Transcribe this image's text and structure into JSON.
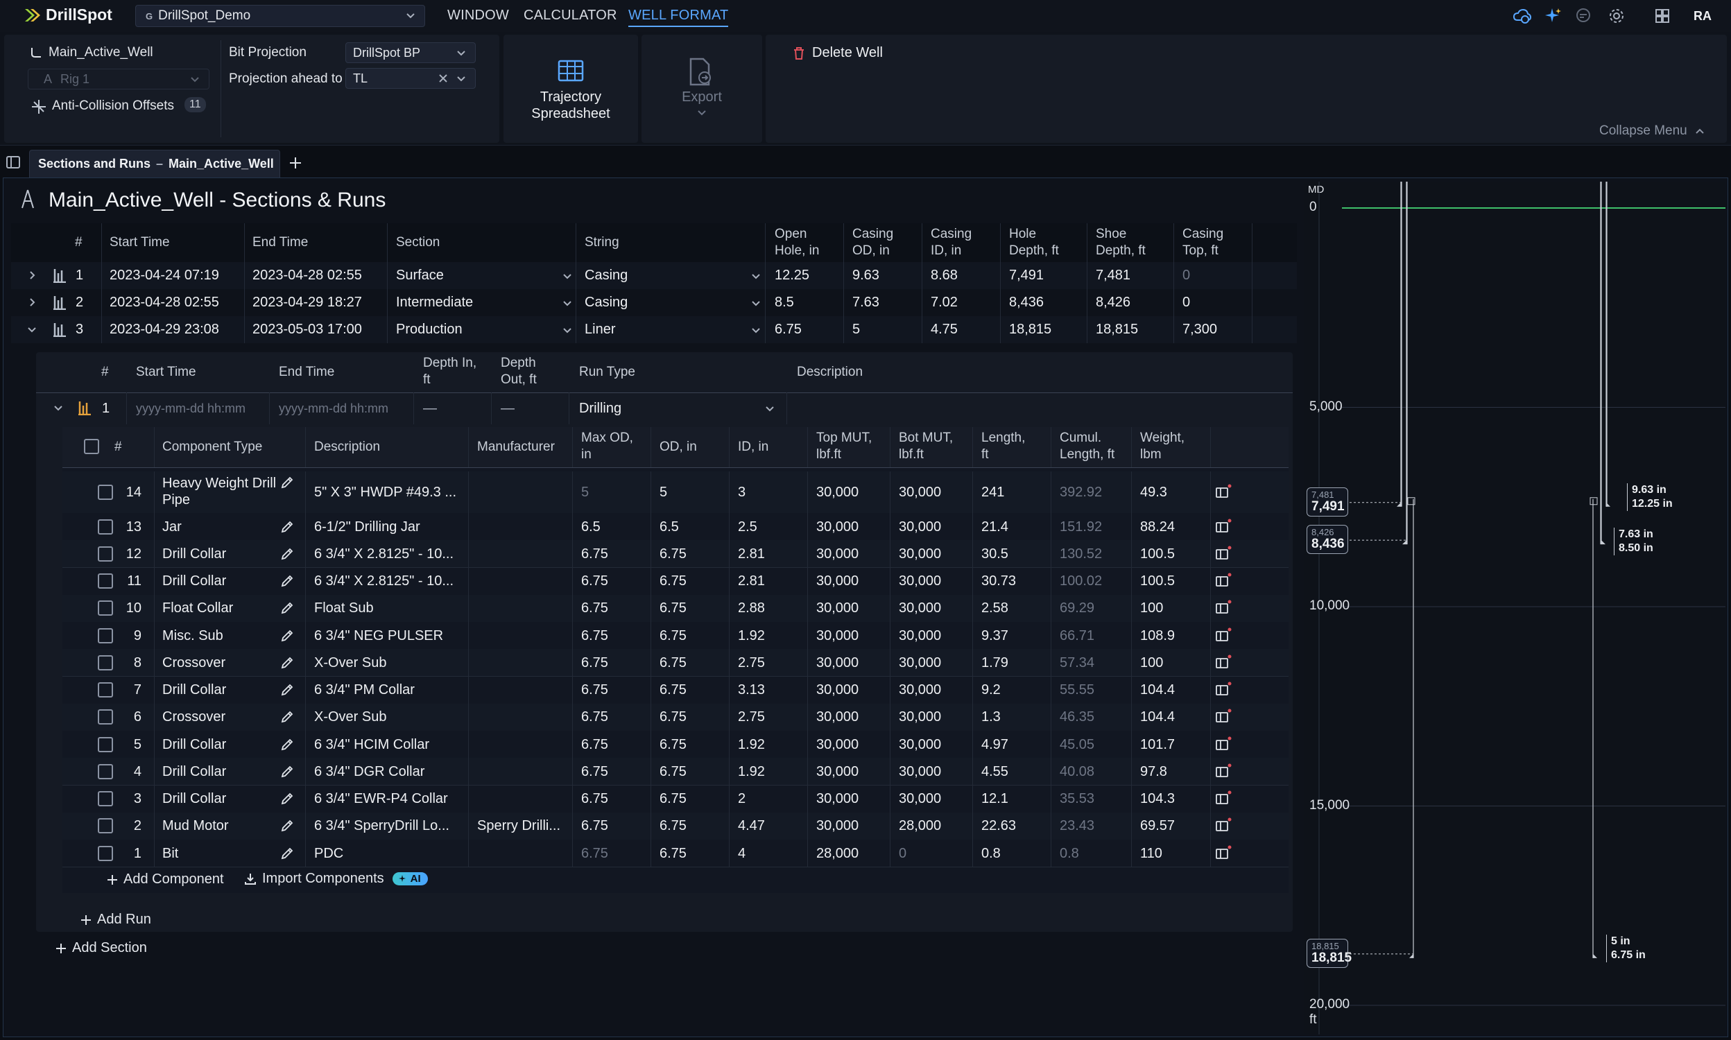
{
  "app": {
    "name": "DrillSpot",
    "project": "DrillSpot_Demo",
    "project_badge": "G",
    "avatar": "RA"
  },
  "nav": {
    "window": "WINDOW",
    "calculator": "CALCULATOR",
    "well_format": "WELL FORMAT"
  },
  "ribbon": {
    "well_name": "Main_Active_Well",
    "rig": "Rig 1",
    "anti_collision": "Anti-Collision Offsets",
    "anti_collision_count": "11",
    "bit_projection_label": "Bit Projection",
    "bit_projection_value": "DrillSpot BP",
    "projection_ahead_label": "Projection ahead to",
    "projection_ahead_value": "TL",
    "trajectory_line1": "Trajectory",
    "trajectory_line2": "Spreadsheet",
    "export": "Export",
    "delete_well": "Delete Well",
    "collapse_menu": "Collapse Menu"
  },
  "tab": {
    "label": "Sections and Runs",
    "sep": "–",
    "well": "Main_Active_Well"
  },
  "page": {
    "title": "Main_Active_Well - Sections & Runs"
  },
  "sections": {
    "headers": {
      "num": "#",
      "start": "Start Time",
      "end": "End Time",
      "section": "Section",
      "string": "String",
      "open_hole": [
        "Open",
        "Hole, in"
      ],
      "casing_od": [
        "Casing",
        "OD, in"
      ],
      "casing_id": [
        "Casing",
        "ID, in"
      ],
      "hole_depth": [
        "Hole",
        "Depth, ft"
      ],
      "shoe_depth": [
        "Shoe",
        "Depth, ft"
      ],
      "casing_top": [
        "Casing",
        "Top, ft"
      ]
    },
    "rows": [
      {
        "num": "1",
        "start": "2023-04-24 07:19",
        "end": "2023-04-28 02:55",
        "section": "Surface",
        "string": "Casing",
        "open_hole": "12.25",
        "casing_od": "9.63",
        "casing_id": "8.68",
        "hole_depth": "7,491",
        "shoe_depth": "7,481",
        "casing_top": "0"
      },
      {
        "num": "2",
        "start": "2023-04-28 02:55",
        "end": "2023-04-29 18:27",
        "section": "Intermediate",
        "string": "Casing",
        "open_hole": "8.5",
        "casing_od": "7.63",
        "casing_id": "7.02",
        "hole_depth": "8,436",
        "shoe_depth": "8,426",
        "casing_top": "0"
      },
      {
        "num": "3",
        "start": "2023-04-29 23:08",
        "end": "2023-05-03 17:00",
        "section": "Production",
        "string": "Liner",
        "open_hole": "6.75",
        "casing_od": "5",
        "casing_id": "4.75",
        "hole_depth": "18,815",
        "shoe_depth": "18,815",
        "casing_top": "7,300"
      }
    ]
  },
  "runs": {
    "headers": {
      "num": "#",
      "start": "Start Time",
      "end": "End Time",
      "depth_in": [
        "Depth In,",
        "ft"
      ],
      "depth_out": [
        "Depth",
        "Out, ft"
      ],
      "run_type": "Run Type",
      "description": "Description"
    },
    "row": {
      "num": "1",
      "start_placeholder": "yyyy-mm-dd hh:mm",
      "end_placeholder": "yyyy-mm-dd hh:mm",
      "depth_in": "—",
      "depth_out": "—",
      "run_type": "Drilling",
      "description": ""
    }
  },
  "components": {
    "headers": {
      "num": "#",
      "type": "Component Type",
      "description": "Description",
      "manufacturer": "Manufacturer",
      "max_od": [
        "Max OD,",
        "in"
      ],
      "od": "OD, in",
      "id": "ID, in",
      "top_mut": [
        "Top MUT,",
        "lbf.ft"
      ],
      "bot_mut": [
        "Bot MUT,",
        "lbf.ft"
      ],
      "length": [
        "Length,",
        "ft"
      ],
      "cumul": [
        "Cumul.",
        "Length, ft"
      ],
      "weight": [
        "Weight,",
        "lbm"
      ]
    },
    "rows": [
      {
        "num": "14",
        "type": "Heavy Weight Drill",
        "type2": "Pipe",
        "description": "5\" X 3\" HWDP #49.3 ...",
        "manufacturer": "",
        "max_od": "5",
        "od": "5",
        "id": "3",
        "top_mut": "30,000",
        "bot_mut": "30,000",
        "length": "241",
        "cumul": "392.92",
        "weight": "49.3"
      },
      {
        "num": "13",
        "type": "Jar",
        "type2": "",
        "description": "6-1/2\" Drilling Jar",
        "manufacturer": "",
        "max_od": "6.5",
        "od": "6.5",
        "id": "2.5",
        "top_mut": "30,000",
        "bot_mut": "30,000",
        "length": "21.4",
        "cumul": "151.92",
        "weight": "88.24"
      },
      {
        "num": "12",
        "type": "Drill Collar",
        "type2": "",
        "description": "6 3/4\" X 2.8125\" - 10...",
        "manufacturer": "",
        "max_od": "6.75",
        "od": "6.75",
        "id": "2.81",
        "top_mut": "30,000",
        "bot_mut": "30,000",
        "length": "30.5",
        "cumul": "130.52",
        "weight": "100.5"
      },
      {
        "num": "11",
        "type": "Drill Collar",
        "type2": "",
        "description": "6 3/4\" X 2.8125\" - 10...",
        "manufacturer": "",
        "max_od": "6.75",
        "od": "6.75",
        "id": "2.81",
        "top_mut": "30,000",
        "bot_mut": "30,000",
        "length": "30.73",
        "cumul": "100.02",
        "weight": "100.5"
      },
      {
        "num": "10",
        "type": "Float Collar",
        "type2": "",
        "description": "Float Sub",
        "manufacturer": "",
        "max_od": "6.75",
        "od": "6.75",
        "id": "2.88",
        "top_mut": "30,000",
        "bot_mut": "30,000",
        "length": "2.58",
        "cumul": "69.29",
        "weight": "100"
      },
      {
        "num": "9",
        "type": "Misc. Sub",
        "type2": "",
        "description": "6 3/4\" NEG PULSER",
        "manufacturer": "",
        "max_od": "6.75",
        "od": "6.75",
        "id": "1.92",
        "top_mut": "30,000",
        "bot_mut": "30,000",
        "length": "9.37",
        "cumul": "66.71",
        "weight": "108.9"
      },
      {
        "num": "8",
        "type": "Crossover",
        "type2": "",
        "description": "X-Over Sub",
        "manufacturer": "",
        "max_od": "6.75",
        "od": "6.75",
        "id": "2.75",
        "top_mut": "30,000",
        "bot_mut": "30,000",
        "length": "1.79",
        "cumul": "57.34",
        "weight": "100"
      },
      {
        "num": "7",
        "type": "Drill Collar",
        "type2": "",
        "description": "6 3/4\" PM Collar",
        "manufacturer": "",
        "max_od": "6.75",
        "od": "6.75",
        "id": "3.13",
        "top_mut": "30,000",
        "bot_mut": "30,000",
        "length": "9.2",
        "cumul": "55.55",
        "weight": "104.4"
      },
      {
        "num": "6",
        "type": "Crossover",
        "type2": "",
        "description": "X-Over Sub",
        "manufacturer": "",
        "max_od": "6.75",
        "od": "6.75",
        "id": "2.75",
        "top_mut": "30,000",
        "bot_mut": "30,000",
        "length": "1.3",
        "cumul": "46.35",
        "weight": "104.4"
      },
      {
        "num": "5",
        "type": "Drill Collar",
        "type2": "",
        "description": "6 3/4\" HCIM Collar",
        "manufacturer": "",
        "max_od": "6.75",
        "od": "6.75",
        "id": "1.92",
        "top_mut": "30,000",
        "bot_mut": "30,000",
        "length": "4.97",
        "cumul": "45.05",
        "weight": "101.7"
      },
      {
        "num": "4",
        "type": "Drill Collar",
        "type2": "",
        "description": "6 3/4\" DGR Collar",
        "manufacturer": "",
        "max_od": "6.75",
        "od": "6.75",
        "id": "1.92",
        "top_mut": "30,000",
        "bot_mut": "30,000",
        "length": "4.55",
        "cumul": "40.08",
        "weight": "97.8"
      },
      {
        "num": "3",
        "type": "Drill Collar",
        "type2": "",
        "description": "6 3/4\" EWR-P4 Collar",
        "manufacturer": "",
        "max_od": "6.75",
        "od": "6.75",
        "id": "2",
        "top_mut": "30,000",
        "bot_mut": "30,000",
        "length": "12.1",
        "cumul": "35.53",
        "weight": "104.3"
      },
      {
        "num": "2",
        "type": "Mud Motor",
        "type2": "",
        "description": "6 3/4\" SperryDrill Lo...",
        "manufacturer": "Sperry Drilli...",
        "max_od": "6.75",
        "od": "6.75",
        "id": "4.47",
        "top_mut": "30,000",
        "bot_mut": "28,000",
        "length": "22.63",
        "cumul": "23.43",
        "weight": "69.57"
      },
      {
        "num": "1",
        "type": "Bit",
        "type2": "",
        "description": "PDC",
        "manufacturer": "",
        "max_od": "6.75",
        "od": "6.75",
        "id": "4",
        "top_mut": "28,000",
        "bot_mut": "0",
        "length": "0.8",
        "cumul": "0.8",
        "weight": "110"
      }
    ],
    "dim_max_od_rows": [
      0,
      13
    ],
    "dim_bot_mut_rows": [
      13
    ]
  },
  "actions": {
    "add_component": "Add Component",
    "import_components": "Import Components",
    "ai_badge": "AI",
    "add_run": "Add Run",
    "add_section": "Add Section"
  },
  "well_schematic": {
    "axis_label": "MD",
    "unit": "ft",
    "depth_range": [
      0,
      20000
    ],
    "ticks": [
      "0",
      "5,000",
      "10,000",
      "15,000",
      "20,000"
    ],
    "depth_markers": [
      {
        "small": "7,481",
        "big": "7,491",
        "depth": 7491
      },
      {
        "small": "8,426",
        "big": "8,436",
        "depth": 8436
      },
      {
        "small": "18,815",
        "big": "18,815",
        "depth": 18815
      }
    ],
    "casing_labels": [
      {
        "od": "9.63 in",
        "hole": "12.25 in",
        "depth": 7491
      },
      {
        "od": "7.63 in",
        "hole": "8.50 in",
        "depth": 8436
      },
      {
        "od": "5 in",
        "hole": "6.75 in",
        "depth": 18815
      }
    ],
    "surface_color": "#3fbf6a"
  },
  "colors": {
    "accent": "#5aa7ff",
    "delete_red": "#e0505a",
    "run_icon": "#e6a23c"
  }
}
